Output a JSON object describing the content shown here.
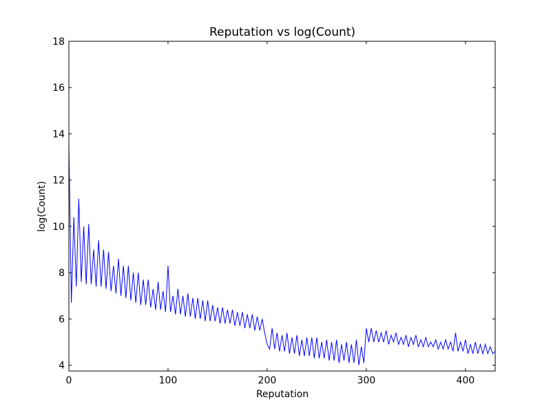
{
  "chart_data": {
    "type": "line",
    "title": "Reputation vs log(Count)",
    "xlabel": "Reputation",
    "ylabel": "log(Count)",
    "x": [
      0,
      2.5,
      5,
      7.5,
      10,
      12.5,
      15,
      17.5,
      20,
      22.5,
      25,
      27.5,
      30,
      32.5,
      35,
      37.5,
      40,
      42.5,
      45,
      47.5,
      50,
      52.5,
      55,
      57.5,
      60,
      62.5,
      65,
      67.5,
      70,
      72.5,
      75,
      77.5,
      80,
      82.5,
      85,
      87.5,
      90,
      92.5,
      95,
      97.5,
      100,
      102.5,
      105,
      107.5,
      110,
      112.5,
      115,
      117.5,
      120,
      122.5,
      125,
      127.5,
      130,
      132.5,
      135,
      137.5,
      140,
      142.5,
      145,
      147.5,
      150,
      152.5,
      155,
      157.5,
      160,
      162.5,
      165,
      167.5,
      170,
      172.5,
      175,
      177.5,
      180,
      182.5,
      185,
      187.5,
      190,
      192.5,
      195,
      197.5,
      200,
      202.5,
      205,
      207.5,
      210,
      212.5,
      215,
      217.5,
      220,
      222.5,
      225,
      227.5,
      230,
      232.5,
      235,
      237.5,
      240,
      242.5,
      245,
      247.5,
      250,
      252.5,
      255,
      257.5,
      260,
      262.5,
      265,
      267.5,
      270,
      272.5,
      275,
      277.5,
      280,
      282.5,
      285,
      287.5,
      290,
      292.5,
      295,
      297.5,
      300,
      302.5,
      305,
      307.5,
      310,
      312.5,
      315,
      317.5,
      320,
      322.5,
      325,
      327.5,
      330,
      332.5,
      335,
      337.5,
      340,
      342.5,
      345,
      347.5,
      350,
      352.5,
      355,
      357.5,
      360,
      362.5,
      365,
      367.5,
      370,
      372.5,
      375,
      377.5,
      380,
      382.5,
      385,
      387.5,
      390,
      392.5,
      395,
      397.5,
      400,
      402.5,
      405,
      407.5,
      410,
      412.5,
      415,
      417.5,
      420,
      422.5,
      425,
      427.5,
      430
    ],
    "series": [
      {
        "name": "log(Count)",
        "color": "#0000ff",
        "values": [
          13.5,
          6.7,
          10.4,
          7.4,
          11.2,
          7.6,
          10.0,
          7.5,
          10.1,
          7.5,
          9.0,
          7.4,
          9.4,
          7.4,
          9.0,
          7.3,
          8.9,
          7.2,
          8.3,
          7.1,
          8.6,
          7.0,
          8.3,
          6.9,
          8.3,
          6.8,
          8.0,
          6.7,
          8.0,
          6.6,
          7.7,
          6.6,
          7.7,
          6.5,
          7.3,
          6.4,
          7.6,
          6.4,
          7.2,
          6.3,
          8.3,
          6.3,
          7.0,
          6.2,
          7.3,
          6.2,
          7.0,
          6.1,
          7.1,
          6.1,
          6.9,
          6.0,
          6.9,
          6.0,
          6.8,
          5.9,
          6.8,
          5.9,
          6.6,
          5.9,
          6.5,
          5.8,
          6.5,
          5.8,
          6.4,
          5.8,
          6.4,
          5.7,
          6.3,
          5.7,
          6.3,
          5.6,
          6.2,
          5.6,
          6.2,
          5.5,
          6.1,
          5.5,
          6.0,
          5.4,
          4.9,
          4.7,
          5.6,
          4.7,
          5.4,
          4.6,
          5.3,
          4.6,
          5.4,
          4.5,
          5.2,
          4.5,
          5.3,
          4.4,
          5.1,
          4.4,
          5.2,
          4.4,
          5.2,
          4.3,
          5.2,
          4.3,
          5.0,
          4.3,
          5.1,
          4.2,
          5.0,
          4.2,
          5.1,
          4.1,
          4.9,
          4.2,
          5.0,
          4.1,
          4.9,
          4.1,
          5.1,
          4.0,
          4.8,
          4.1,
          5.6,
          5.0,
          5.6,
          5.0,
          5.5,
          5.0,
          5.4,
          5.0,
          5.5,
          4.9,
          5.3,
          5.0,
          5.4,
          4.9,
          5.2,
          4.9,
          5.3,
          4.8,
          5.2,
          4.9,
          5.3,
          4.8,
          5.1,
          4.8,
          5.2,
          4.8,
          5.0,
          4.8,
          5.1,
          4.7,
          5.0,
          4.7,
          5.1,
          4.7,
          5.0,
          4.6,
          5.4,
          4.6,
          5.0,
          4.6,
          5.1,
          4.5,
          4.9,
          4.5,
          5.0,
          4.5,
          4.9,
          4.5,
          4.9,
          4.5,
          4.8,
          4.5,
          4.6
        ]
      }
    ],
    "xlim": [
      0,
      430
    ],
    "xticks": [
      0,
      100,
      200,
      300,
      400
    ],
    "ylim": [
      3.75,
      18
    ],
    "yticks": [
      4,
      6,
      8,
      10,
      12,
      14,
      16,
      18
    ]
  }
}
